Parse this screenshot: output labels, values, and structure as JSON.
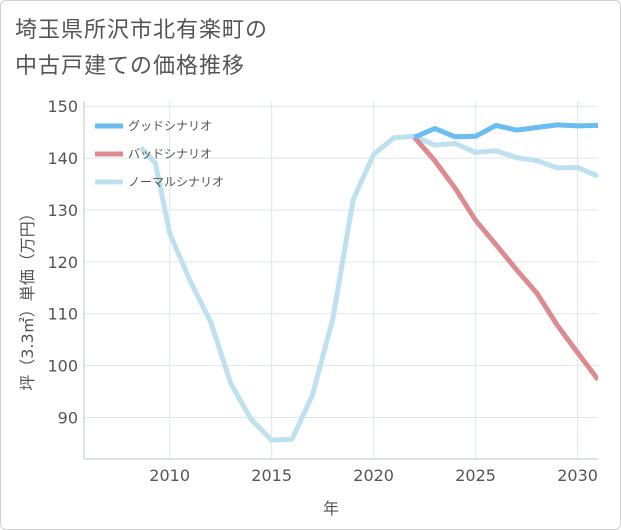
{
  "title": {
    "line1": "埼玉県所沢市北有楽町の",
    "line2": "中古戸建ての価格推移"
  },
  "chart_data": {
    "type": "line",
    "title": "埼玉県所沢市北有楽町の中古戸建ての価格推移",
    "xlabel": "年",
    "ylabel": "坪（3.3㎡）単価（万円）",
    "xlim": [
      2005.8,
      2031
    ],
    "ylim": [
      82,
      151
    ],
    "xticks": [
      2010,
      2015,
      2020,
      2025,
      2030
    ],
    "yticks": [
      90,
      100,
      110,
      120,
      130,
      140,
      150
    ],
    "grid": true,
    "legend_position": "top-left",
    "series": [
      {
        "name": "グッドシナリオ",
        "color": "#6bbcf0",
        "x": [
          2022,
          2023,
          2024,
          2025,
          2026,
          2027,
          2028,
          2029,
          2030,
          2031
        ],
        "values": [
          144.0,
          145.7,
          144.1,
          144.2,
          146.3,
          145.4,
          145.9,
          146.4,
          146.2,
          146.3
        ]
      },
      {
        "name": "バッドシナリオ",
        "color": "#dc8c90",
        "x": [
          2022,
          2023,
          2024,
          2025,
          2026,
          2027,
          2028,
          2029,
          2030,
          2031
        ],
        "values": [
          144.0,
          139.5,
          134.2,
          128.0,
          123.3,
          118.5,
          114.0,
          107.8,
          102.5,
          97.3
        ]
      },
      {
        "name": "ノーマルシナリオ",
        "color": "#bfe0ee",
        "x": [
          2008.6,
          2009.3,
          2010,
          2011,
          2012,
          2013,
          2014,
          2015,
          2016,
          2017,
          2018,
          2019,
          2020,
          2021,
          2022,
          2023,
          2024,
          2025,
          2026,
          2027,
          2028,
          2029,
          2030,
          2031
        ],
        "values": [
          142.0,
          139.0,
          125.5,
          116.3,
          108.5,
          96.5,
          89.6,
          85.6,
          85.8,
          94.3,
          109.0,
          132.0,
          140.7,
          143.9,
          144.2,
          142.5,
          142.8,
          141.1,
          141.4,
          140.1,
          139.5,
          138.1,
          138.2,
          136.5
        ]
      }
    ]
  }
}
